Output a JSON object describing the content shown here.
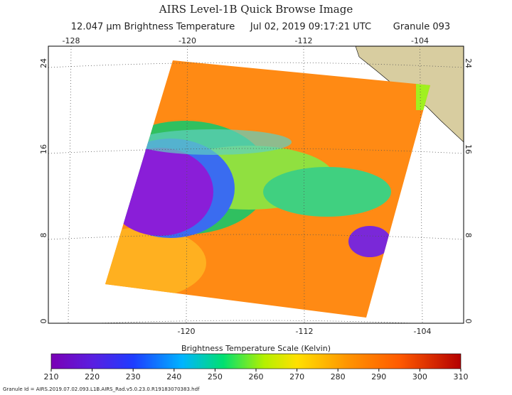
{
  "header": {
    "title": "AIRS Level-1B Quick Browse Image",
    "subtitle": [
      "12.047 μm Brightness Temperature",
      "Jul 02, 2019 09:17:21 UTC",
      "Granule 093"
    ]
  },
  "map": {
    "top_lon_ticks": [
      -128,
      -120,
      -112,
      -104
    ],
    "bottom_lon_ticks": [
      -120,
      -112,
      -104
    ],
    "lat_ticks": [
      24,
      16,
      8,
      0
    ]
  },
  "colorbar": {
    "title": "Brightness Temperature Scale (Kelvin)",
    "ticks": [
      210,
      220,
      230,
      240,
      250,
      260,
      270,
      280,
      290,
      300,
      310
    ]
  },
  "footer": "Granule Id = AIRS.2019.07.02.093.L1B.AIRS_Rad.v5.0.23.0.R19183070383.hdf"
}
